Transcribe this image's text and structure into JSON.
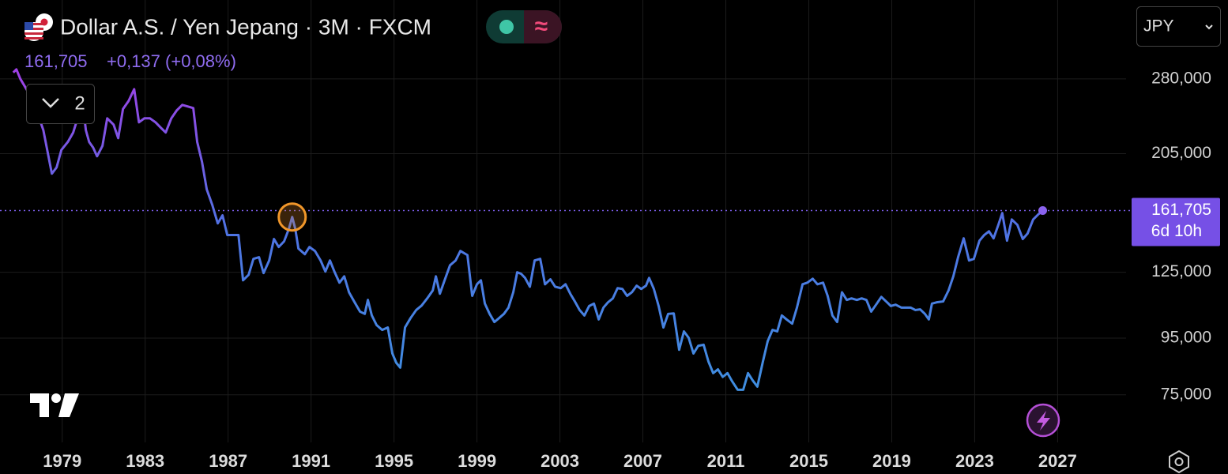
{
  "chart_data": {
    "type": "line",
    "title": "Dollar A.S. / Yen Jepang · 3M · FXCM",
    "change": "+0,137 (+0,08%)",
    "indicator_count": "2",
    "currency": "JPY",
    "countdown": "6d 10h",
    "last_price": {
      "value": 161.705,
      "label": "161,705"
    },
    "log_scale": true,
    "grid": true,
    "xlim": [
      1976,
      2030.3
    ],
    "xticks": [
      1979,
      1983,
      1987,
      1991,
      1995,
      1999,
      2003,
      2007,
      2011,
      2015,
      2019,
      2023,
      2027
    ],
    "ylim": [
      61.5,
      389
    ],
    "yticks": [
      {
        "value": 280,
        "label": "280,000"
      },
      {
        "value": 205,
        "label": "205,000"
      },
      {
        "value": 125,
        "label": "125,000"
      },
      {
        "value": 95,
        "label": "95,000"
      },
      {
        "value": 75,
        "label": "75,000"
      }
    ],
    "x": [
      1976.64,
      1976.79,
      1976.98,
      1977.32,
      1977.7,
      1978.09,
      1978.5,
      1978.73,
      1978.96,
      1979.27,
      1979.53,
      1979.8,
      1980.03,
      1980.14,
      1980.3,
      1980.49,
      1980.68,
      1980.94,
      1981.17,
      1981.48,
      1981.7,
      1981.93,
      1982.2,
      1982.47,
      1982.7,
      1982.96,
      1983.23,
      1983.5,
      1983.76,
      1983.99,
      1984.26,
      1984.52,
      1984.79,
      1985.06,
      1985.32,
      1985.51,
      1985.74,
      1985.97,
      1986.24,
      1986.5,
      1986.73,
      1986.96,
      1987.27,
      1987.5,
      1987.72,
      1987.99,
      1988.22,
      1988.49,
      1988.71,
      1988.98,
      1989.21,
      1989.44,
      1989.7,
      1989.93,
      1990.09,
      1990.24,
      1990.39,
      1990.7,
      1990.92,
      1991.19,
      1991.46,
      1991.69,
      1991.91,
      1992.14,
      1992.37,
      1992.6,
      1992.83,
      1993.1,
      1993.36,
      1993.59,
      1993.74,
      1993.93,
      1994.16,
      1994.43,
      1994.7,
      1994.92,
      1995.11,
      1995.3,
      1995.53,
      1995.8,
      1996.07,
      1996.33,
      1996.6,
      1996.87,
      1997.02,
      1997.21,
      1997.44,
      1997.7,
      1997.97,
      1998.2,
      1998.54,
      1998.77,
      1999.0,
      1999.19,
      1999.38,
      1999.61,
      1999.84,
      2000.07,
      2000.3,
      2000.52,
      2000.75,
      2000.94,
      2001.13,
      2001.32,
      2001.55,
      2001.78,
      2002.05,
      2002.28,
      2002.54,
      2002.77,
      2003.04,
      2003.27,
      2003.5,
      2003.72,
      2003.95,
      2004.18,
      2004.41,
      2004.64,
      2004.87,
      2005.1,
      2005.32,
      2005.55,
      2005.78,
      2006.01,
      2006.24,
      2006.47,
      2006.7,
      2006.92,
      2007.15,
      2007.3,
      2007.53,
      2007.76,
      2007.99,
      2008.22,
      2008.49,
      2008.75,
      2008.98,
      2009.21,
      2009.44,
      2009.67,
      2009.93,
      2010.16,
      2010.39,
      2010.62,
      2010.85,
      2011.08,
      2011.3,
      2011.57,
      2011.84,
      2012.07,
      2012.3,
      2012.52,
      2012.79,
      2013.02,
      2013.25,
      2013.48,
      2013.7,
      2013.93,
      2014.2,
      2014.43,
      2014.7,
      2014.93,
      2015.19,
      2015.42,
      2015.69,
      2015.91,
      2016.14,
      2016.37,
      2016.6,
      2016.83,
      2017.06,
      2017.32,
      2017.55,
      2017.78,
      2018.01,
      2018.28,
      2018.5,
      2018.73,
      2018.96,
      2019.19,
      2019.46,
      2019.69,
      2019.91,
      2020.14,
      2020.37,
      2020.6,
      2020.79,
      2020.94,
      2021.17,
      2021.48,
      2021.74,
      2021.97,
      2022.2,
      2022.47,
      2022.73,
      2022.96,
      2023.23,
      2023.46,
      2023.69,
      2023.91,
      2024.14,
      2024.33,
      2024.56,
      2024.79,
      2025.06,
      2025.32,
      2025.55,
      2025.82,
      2026.05,
      2026.28
    ],
    "series": [
      {
        "name": "USDJPY",
        "color": "#4f73e3",
        "values": [
          287.5,
          291.3,
          280,
          266.5,
          249.5,
          226.1,
          188.6,
          193.6,
          208.2,
          215.2,
          223.9,
          241.4,
          245.4,
          226.1,
          215.2,
          210.3,
          202.8,
          211.7,
          237.5,
          231.3,
          218.7,
          246.9,
          255.3,
          268.2,
          233.6,
          237.5,
          237.5,
          233.6,
          228.3,
          223.9,
          237.5,
          245.4,
          251.2,
          249.5,
          247.9,
          215.2,
          198.2,
          176.6,
          165.4,
          153.3,
          158.5,
          146.0,
          146.0,
          146.0,
          120.9,
          123.7,
          132.2,
          133.1,
          124.6,
          131.3,
          143.6,
          138.9,
          142.2,
          149.8,
          157.4,
          149.8,
          138.0,
          134.8,
          138.9,
          136.6,
          131.3,
          125.4,
          131.3,
          125.0,
          119.7,
          122.9,
          115.0,
          110.3,
          106.1,
          105.1,
          111.4,
          104.4,
          100.3,
          98.3,
          99.3,
          89.1,
          85.7,
          84.0,
          99.3,
          103.3,
          106.8,
          108.8,
          112.1,
          115.9,
          122.9,
          114.3,
          120.9,
          128.7,
          131.3,
          136.6,
          134.3,
          113.3,
          118.9,
          120.9,
          109.7,
          105.1,
          101.6,
          103.3,
          105.1,
          107.9,
          115.0,
          125.0,
          124.2,
          122.1,
          117.7,
          131.3,
          132.2,
          118.9,
          121.4,
          117.7,
          117.0,
          118.9,
          114.3,
          110.7,
          106.8,
          104.4,
          108.6,
          109.7,
          102.7,
          107.9,
          110.3,
          112.1,
          117.0,
          116.6,
          113.3,
          115.0,
          118.2,
          116.6,
          118.2,
          122.1,
          116.6,
          108.6,
          99.3,
          105.1,
          105.3,
          90.5,
          97.7,
          95.1,
          89.1,
          92.0,
          92.4,
          86.2,
          82.1,
          83.4,
          80.8,
          82.1,
          79.4,
          76.6,
          76.6,
          82.1,
          79.6,
          77.6,
          86.2,
          93.8,
          98.3,
          97.7,
          104.4,
          102.7,
          100.9,
          107.9,
          118.9,
          119.7,
          121.7,
          118.9,
          119.7,
          113.3,
          104.4,
          101.6,
          115.0,
          111.4,
          112.1,
          111.4,
          112.1,
          111.4,
          106.1,
          109.7,
          112.8,
          110.7,
          108.6,
          109.2,
          107.9,
          107.9,
          107.9,
          106.8,
          107.1,
          105.1,
          102.7,
          109.7,
          110.3,
          110.7,
          115.9,
          122.9,
          133.1,
          144.0,
          131.3,
          132.2,
          142.6,
          146.0,
          148.3,
          144.0,
          152.3,
          160.0,
          142.6,
          155.8,
          152.3,
          143.6,
          146.9,
          155.8,
          158.9,
          161.705
        ]
      }
    ]
  }
}
